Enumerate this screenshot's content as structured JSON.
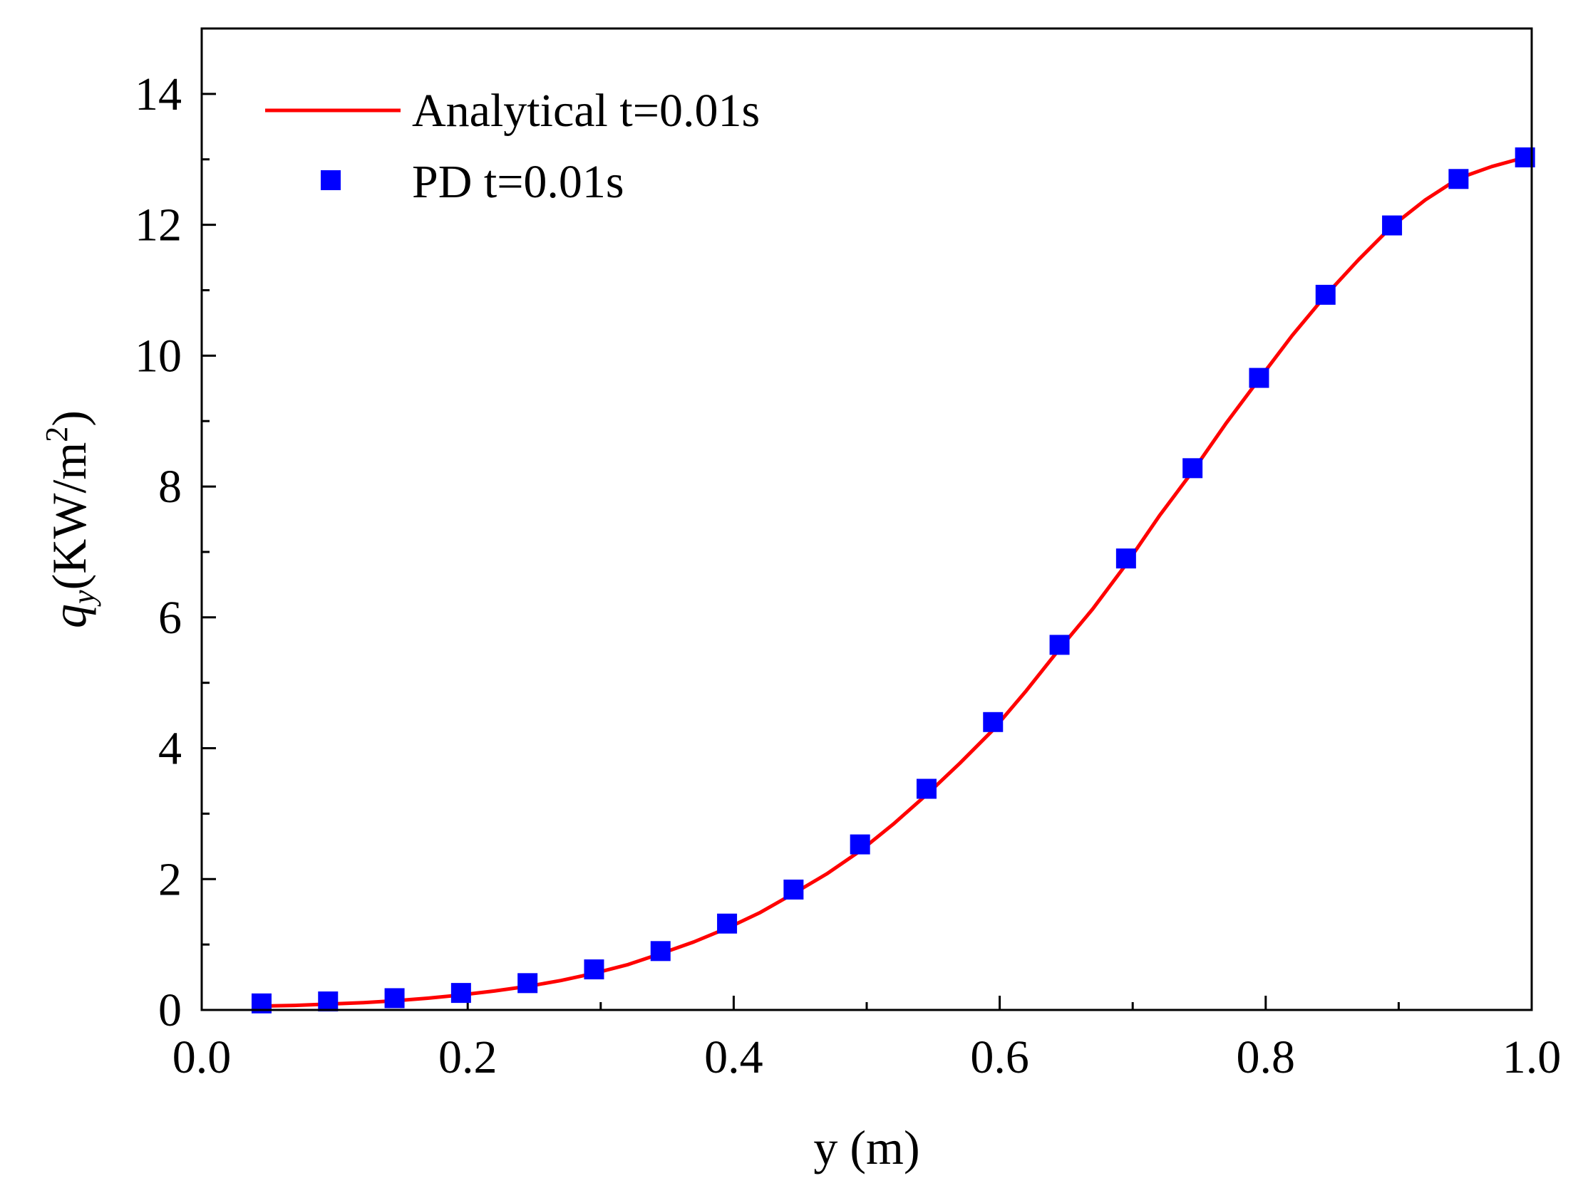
{
  "chart_data": {
    "type": "scatter",
    "title": "",
    "xlabel": "y (m)",
    "ylabel": {
      "symbol": "q",
      "subscript": "y",
      "unit_open": "(KW/m",
      "superscript": "2",
      "unit_close": ")"
    },
    "xlim": [
      0.0,
      1.0
    ],
    "ylim": [
      0,
      15
    ],
    "x_ticks": [
      0.0,
      0.2,
      0.4,
      0.6,
      0.8,
      1.0
    ],
    "x_tick_labels": [
      "0.0",
      "0.2",
      "0.4",
      "0.6",
      "0.8",
      "1.0"
    ],
    "y_ticks": [
      0,
      2,
      4,
      6,
      8,
      10,
      12,
      14
    ],
    "y_tick_labels": [
      "0",
      "2",
      "4",
      "6",
      "8",
      "10",
      "12",
      "14"
    ],
    "grid": false,
    "legend_position": "top-left",
    "series": [
      {
        "name": "Analytical t=0.01s",
        "type": "line",
        "color": "#ff0000",
        "x": [
          0.045,
          0.07,
          0.095,
          0.12,
          0.145,
          0.17,
          0.195,
          0.22,
          0.245,
          0.27,
          0.295,
          0.32,
          0.345,
          0.37,
          0.395,
          0.42,
          0.445,
          0.47,
          0.495,
          0.52,
          0.545,
          0.57,
          0.595,
          0.62,
          0.645,
          0.67,
          0.695,
          0.72,
          0.745,
          0.77,
          0.795,
          0.82,
          0.845,
          0.87,
          0.895,
          0.92,
          0.945,
          0.97,
          0.995
        ],
        "y": [
          0.06,
          0.07,
          0.09,
          0.11,
          0.14,
          0.18,
          0.23,
          0.29,
          0.36,
          0.45,
          0.56,
          0.69,
          0.86,
          1.04,
          1.25,
          1.49,
          1.78,
          2.08,
          2.43,
          2.84,
          3.29,
          3.77,
          4.28,
          4.88,
          5.52,
          6.13,
          6.81,
          7.55,
          8.23,
          8.96,
          9.64,
          10.31,
          10.92,
          11.47,
          11.98,
          12.38,
          12.71,
          12.89,
          13.03
        ]
      },
      {
        "name": "PD t=0.01s",
        "type": "scatter",
        "color": "#0000ff",
        "marker": "square",
        "x": [
          0.045,
          0.095,
          0.145,
          0.195,
          0.245,
          0.295,
          0.345,
          0.395,
          0.445,
          0.495,
          0.545,
          0.595,
          0.645,
          0.695,
          0.745,
          0.795,
          0.845,
          0.895,
          0.945,
          0.995
        ],
        "y": [
          0.1,
          0.13,
          0.18,
          0.26,
          0.41,
          0.62,
          0.9,
          1.32,
          1.84,
          2.53,
          3.38,
          4.4,
          5.58,
          6.9,
          8.28,
          9.66,
          10.93,
          11.99,
          12.7,
          13.03
        ]
      }
    ]
  }
}
